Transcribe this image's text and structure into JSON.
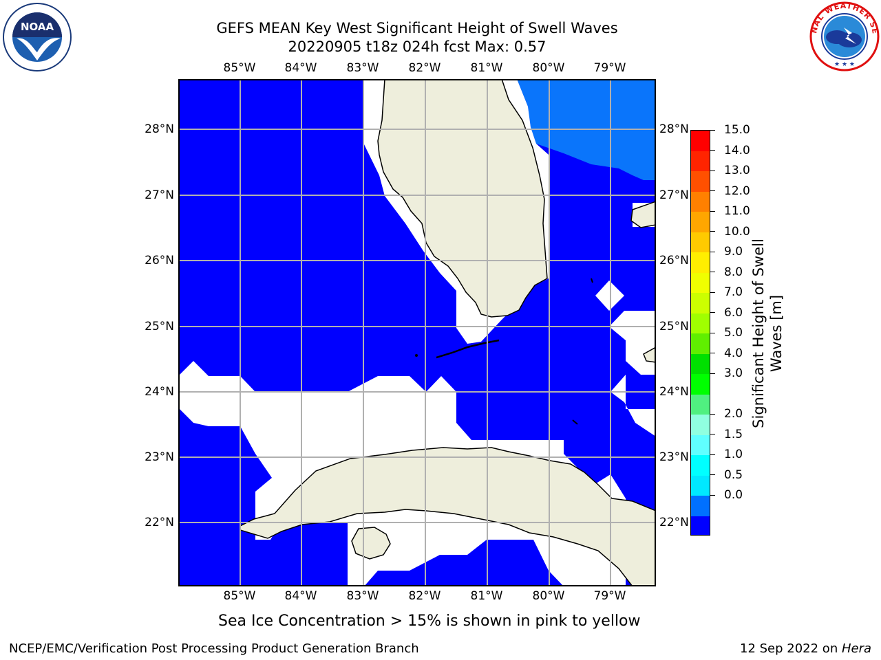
{
  "header": {
    "title_line1": "GEFS MEAN Key West Significant Height of Swell Waves",
    "title_line2": "20220905 t18z 024h fcst   Max: 0.57"
  },
  "logos": {
    "left": {
      "icon": "noaa-logo-icon",
      "text": "NOAA",
      "ring_text": "NATIONAL OCEANIC AND ATMOSPHERIC ADMINISTRATION · U.S. DEPARTMENT OF COMMERCE"
    },
    "right": {
      "icon": "nws-logo-icon",
      "ring_text": "NATIONAL WEATHER SERVICE"
    }
  },
  "map": {
    "lon_labels": [
      "85°W",
      "84°W",
      "83°W",
      "82°W",
      "81°W",
      "80°W",
      "79°W"
    ],
    "lat_labels": [
      "28°N",
      "27°N",
      "26°N",
      "25°N",
      "24°N",
      "23°N",
      "22°N"
    ],
    "region_lon": [
      -86.0,
      -78.3
    ],
    "region_lat": [
      21.0,
      28.8
    ],
    "colors": {
      "land": "#eeeedc",
      "swell_0_0.5": "#0000ff",
      "swell_0.5_1.0": "#0a75fb",
      "no_data": "#ffffff",
      "grid": "#b0b0b0"
    }
  },
  "colorbar": {
    "label_line1": "Significant Height of Swell",
    "label_line2": "Waves [m]",
    "ticks": [
      "15.0",
      "14.0",
      "13.0",
      "12.0",
      "11.0",
      "10.0",
      "9.0",
      "8.0",
      "7.0",
      "6.0",
      "5.0",
      "4.0",
      "3.0",
      "2.0",
      "1.5",
      "1.0",
      "0.5",
      "0.0"
    ],
    "colors_top_to_bottom": [
      "#ff0000",
      "#ff2400",
      "#ff5000",
      "#ff8000",
      "#ffa600",
      "#ffca00",
      "#ffee00",
      "#f0ff00",
      "#ccff00",
      "#a0ff00",
      "#60ef00",
      "#00e000",
      "#00ff00",
      "#50f080",
      "#90ffe0",
      "#60ffff",
      "#00ffff",
      "#00e8ff",
      "#0070ff",
      "#0000ff"
    ]
  },
  "note": "Sea Ice Concentration > 15% is shown in pink to yellow",
  "footer": {
    "left": "NCEP/EMC/Verification Post Processing Product Generation Branch",
    "right_date": "12 Sep 2022 on ",
    "right_machine": "Hera"
  }
}
